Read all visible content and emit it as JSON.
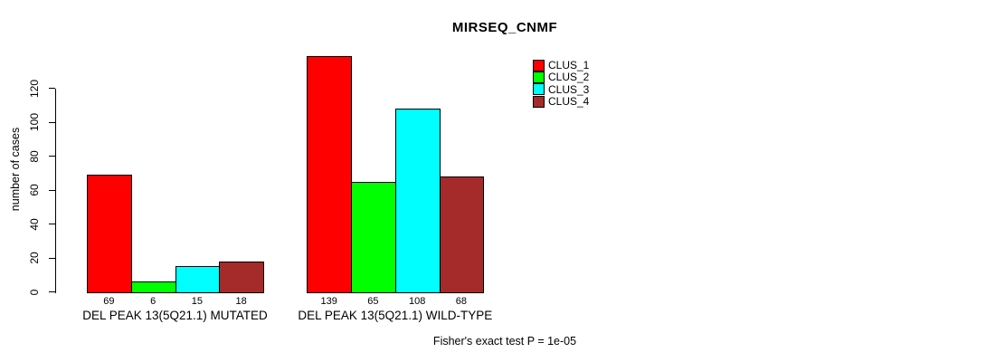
{
  "chart_data": {
    "type": "bar",
    "title": "MIRSEQ_CNMF",
    "xlabel": "",
    "ylabel": "number of cases",
    "ylim": [
      0,
      144
    ],
    "yticks": [
      0,
      20,
      40,
      60,
      80,
      100,
      120
    ],
    "grid": false,
    "legend_position": "top-right-inside",
    "bar_value_labels": true,
    "categories": [
      "DEL PEAK 13(5Q21.1) MUTATED",
      "DEL PEAK 13(5Q21.1) WILD-TYPE"
    ],
    "series": [
      {
        "name": "CLUS_1",
        "color": "#FF0000",
        "values": [
          69,
          139
        ]
      },
      {
        "name": "CLUS_2",
        "color": "#00FF00",
        "values": [
          6,
          65
        ]
      },
      {
        "name": "CLUS_3",
        "color": "#00FFFF",
        "values": [
          15,
          108
        ]
      },
      {
        "name": "CLUS_4",
        "color": "#A52A2A",
        "values": [
          18,
          68
        ]
      }
    ],
    "annotation": "Fisher's exact test P = 1e-05",
    "axis_color": "#000000",
    "background_color": "#FFFFFF"
  }
}
